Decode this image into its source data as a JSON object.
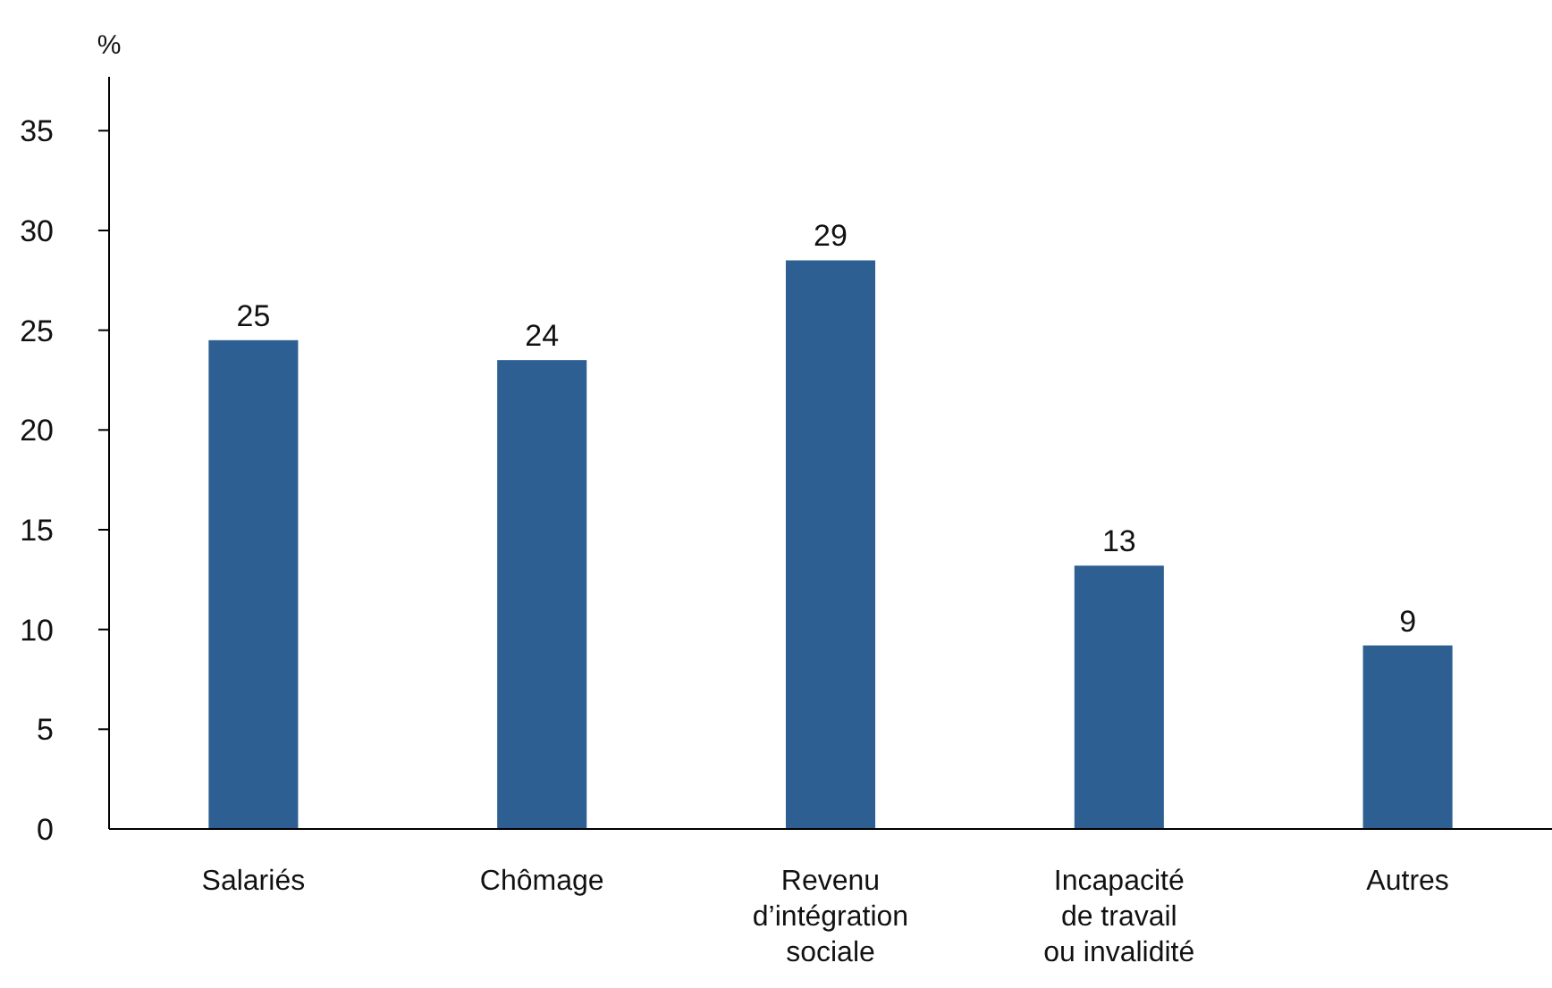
{
  "chart_data": {
    "type": "bar",
    "ylabel": "%",
    "categories": [
      "Salariés",
      "Chômage",
      "Revenu d’intégration sociale",
      "Incapacité de travail ou invalidité",
      "Autres"
    ],
    "values": [
      24.5,
      23.5,
      28.5,
      13.2,
      9.2
    ],
    "value_labels": [
      "25",
      "24",
      "29",
      "13",
      "9"
    ],
    "color": "#2e5f93",
    "ylim": [
      0,
      37.7
    ],
    "yticks": [
      0,
      5,
      10,
      15,
      20,
      25,
      30,
      35
    ],
    "grid": false
  }
}
